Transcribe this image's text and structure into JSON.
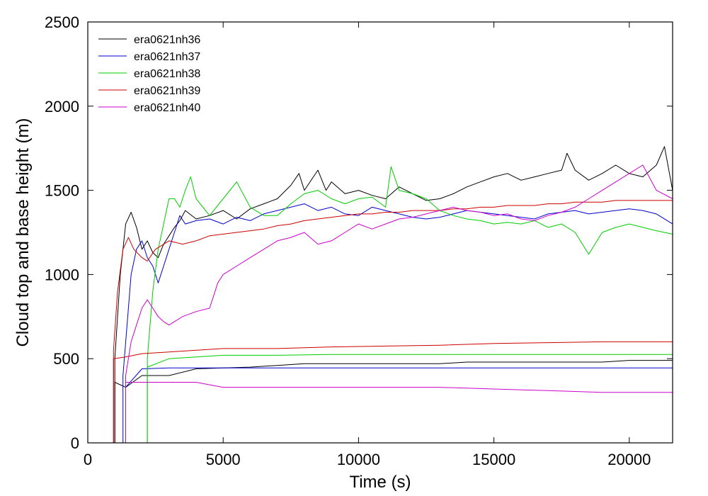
{
  "chart_data": {
    "type": "line",
    "xlabel": "Time (s)",
    "ylabel": "Cloud top and base height (m)",
    "xlim": [
      0,
      21600
    ],
    "ylim": [
      0,
      2500
    ],
    "x_ticks": [
      0,
      5000,
      10000,
      15000,
      20000
    ],
    "y_ticks": [
      0,
      500,
      1000,
      1500,
      2000,
      2500
    ],
    "legend_position": "top-left",
    "series": [
      {
        "name": "era0621nh36",
        "color": "#000000",
        "top": {
          "x": [
            1000,
            1200,
            1400,
            1600,
            1800,
            2000,
            2200,
            2400,
            2600,
            2800,
            3000,
            3200,
            3400,
            3600,
            4000,
            4500,
            5000,
            5500,
            6000,
            6500,
            7000,
            7500,
            7800,
            8000,
            8500,
            8800,
            9000,
            9500,
            10000,
            10500,
            11000,
            11500,
            12000,
            12500,
            13000,
            13500,
            14000,
            14500,
            15000,
            15500,
            16000,
            16500,
            17000,
            17500,
            17700,
            18000,
            18500,
            19000,
            19500,
            20000,
            20500,
            21000,
            21300,
            21600
          ],
          "y": [
            500,
            1000,
            1300,
            1370,
            1280,
            1150,
            1200,
            1130,
            1100,
            1180,
            1230,
            1280,
            1320,
            1380,
            1330,
            1350,
            1380,
            1330,
            1390,
            1420,
            1450,
            1530,
            1600,
            1500,
            1620,
            1500,
            1550,
            1480,
            1500,
            1470,
            1450,
            1520,
            1480,
            1440,
            1450,
            1480,
            1520,
            1550,
            1580,
            1600,
            1560,
            1580,
            1600,
            1620,
            1720,
            1620,
            1560,
            1600,
            1650,
            1600,
            1580,
            1650,
            1760,
            1500
          ]
        },
        "base": {
          "x": [
            1000,
            1400,
            2000,
            3000,
            4000,
            5000,
            6000,
            7000,
            8000,
            9000,
            10000,
            11000,
            12000,
            13000,
            14000,
            15000,
            16000,
            17000,
            18000,
            19000,
            20000,
            21000,
            21600
          ],
          "y": [
            360,
            330,
            400,
            400,
            440,
            445,
            450,
            460,
            470,
            470,
            470,
            470,
            470,
            470,
            480,
            480,
            480,
            480,
            480,
            480,
            490,
            490,
            490
          ]
        }
      },
      {
        "name": "era0621nh37",
        "color": "#0000cc",
        "top": {
          "x": [
            1300,
            1600,
            1800,
            2000,
            2200,
            2400,
            2600,
            2800,
            3000,
            3200,
            3400,
            3600,
            4000,
            4500,
            5000,
            5500,
            6000,
            6500,
            7000,
            7500,
            8000,
            8500,
            9000,
            9500,
            10000,
            10500,
            11000,
            11500,
            12000,
            12500,
            13000,
            13500,
            14000,
            14500,
            15000,
            15500,
            16000,
            16500,
            17000,
            17500,
            18000,
            18500,
            19000,
            19500,
            20000,
            20500,
            21000,
            21600
          ],
          "y": [
            400,
            1000,
            1150,
            1200,
            1100,
            1050,
            950,
            1050,
            1150,
            1250,
            1350,
            1300,
            1320,
            1330,
            1300,
            1340,
            1320,
            1360,
            1380,
            1400,
            1420,
            1380,
            1400,
            1360,
            1350,
            1400,
            1380,
            1360,
            1340,
            1330,
            1340,
            1360,
            1380,
            1370,
            1360,
            1350,
            1340,
            1330,
            1360,
            1370,
            1380,
            1360,
            1370,
            1380,
            1390,
            1380,
            1360,
            1300
          ]
        },
        "base": {
          "x": [
            1400,
            2000,
            3000,
            5000,
            8000,
            11000,
            14000,
            17000,
            20000,
            21600
          ],
          "y": [
            330,
            440,
            445,
            445,
            445,
            445,
            445,
            445,
            445,
            445
          ]
        }
      },
      {
        "name": "era0621nh38",
        "color": "#00cc00",
        "top": {
          "x": [
            2200,
            2400,
            2600,
            2800,
            3000,
            3200,
            3400,
            3600,
            3800,
            4000,
            4500,
            5000,
            5500,
            6000,
            6500,
            7000,
            7500,
            8000,
            8500,
            9000,
            9500,
            10000,
            10500,
            11000,
            11200,
            11500,
            12000,
            12500,
            13000,
            13500,
            14000,
            14500,
            15000,
            15500,
            16000,
            16500,
            17000,
            17500,
            18000,
            18500,
            19000,
            19500,
            20000,
            20500,
            21000,
            21600
          ],
          "y": [
            500,
            900,
            1150,
            1300,
            1450,
            1450,
            1400,
            1500,
            1580,
            1450,
            1350,
            1450,
            1550,
            1400,
            1350,
            1350,
            1420,
            1480,
            1500,
            1450,
            1420,
            1450,
            1460,
            1400,
            1640,
            1500,
            1480,
            1450,
            1380,
            1350,
            1330,
            1320,
            1300,
            1310,
            1300,
            1320,
            1280,
            1300,
            1250,
            1120,
            1250,
            1280,
            1300,
            1280,
            1260,
            1240
          ]
        },
        "base": {
          "x": [
            2200,
            3000,
            5000,
            7000,
            9000,
            11000,
            13000,
            15000,
            17000,
            19000,
            21000,
            21600
          ],
          "y": [
            450,
            500,
            520,
            520,
            525,
            525,
            525,
            525,
            525,
            525,
            525,
            525
          ]
        }
      },
      {
        "name": "era0621nh39",
        "color": "#cc0000",
        "top": {
          "x": [
            950,
            1100,
            1300,
            1500,
            1700,
            2000,
            2200,
            2500,
            3000,
            3500,
            4000,
            4500,
            5000,
            5500,
            6000,
            6500,
            7000,
            7500,
            8000,
            8500,
            9000,
            9500,
            10000,
            10500,
            11000,
            11500,
            12000,
            12500,
            13000,
            13500,
            14000,
            14500,
            15000,
            15500,
            16000,
            16500,
            17000,
            17500,
            18000,
            18500,
            19000,
            19500,
            20000,
            20500,
            21000,
            21600
          ],
          "y": [
            550,
            900,
            1150,
            1220,
            1150,
            1100,
            1080,
            1150,
            1200,
            1180,
            1200,
            1230,
            1240,
            1250,
            1260,
            1270,
            1290,
            1300,
            1320,
            1330,
            1340,
            1350,
            1360,
            1360,
            1370,
            1370,
            1380,
            1380,
            1380,
            1390,
            1390,
            1400,
            1400,
            1410,
            1410,
            1410,
            1420,
            1420,
            1430,
            1430,
            1430,
            1440,
            1440,
            1440,
            1440,
            1440
          ]
        },
        "base": {
          "x": [
            950,
            1400,
            2000,
            3000,
            5000,
            7000,
            9000,
            11000,
            13000,
            15000,
            17000,
            19000,
            21000,
            21600
          ],
          "y": [
            500,
            510,
            530,
            540,
            560,
            560,
            570,
            575,
            580,
            590,
            595,
            600,
            600,
            600
          ]
        }
      },
      {
        "name": "era0621nh40",
        "color": "#cc00cc",
        "top": {
          "x": [
            1400,
            1600,
            1800,
            2000,
            2200,
            2400,
            2600,
            2800,
            3000,
            3200,
            3500,
            4000,
            4500,
            4800,
            5000,
            5500,
            6000,
            6500,
            7000,
            7500,
            8000,
            8500,
            9000,
            9500,
            10000,
            10500,
            11000,
            11500,
            12000,
            12500,
            13000,
            13500,
            14000,
            14500,
            15000,
            15500,
            16000,
            16500,
            17000,
            17500,
            18000,
            18500,
            19000,
            19500,
            20000,
            20500,
            21000,
            21600
          ],
          "y": [
            400,
            600,
            700,
            800,
            850,
            800,
            750,
            720,
            700,
            720,
            750,
            780,
            800,
            950,
            1000,
            1050,
            1100,
            1150,
            1200,
            1220,
            1250,
            1180,
            1200,
            1250,
            1300,
            1270,
            1300,
            1330,
            1340,
            1360,
            1380,
            1400,
            1380,
            1370,
            1350,
            1360,
            1330,
            1320,
            1350,
            1370,
            1400,
            1450,
            1500,
            1550,
            1600,
            1650,
            1500,
            1450
          ]
        },
        "base": {
          "x": [
            1400,
            2000,
            3000,
            4000,
            5000,
            7000,
            9000,
            11000,
            13000,
            15000,
            17000,
            19000,
            21000,
            21600
          ],
          "y": [
            360,
            360,
            360,
            360,
            330,
            330,
            330,
            330,
            330,
            320,
            310,
            300,
            300,
            300
          ]
        }
      }
    ]
  }
}
